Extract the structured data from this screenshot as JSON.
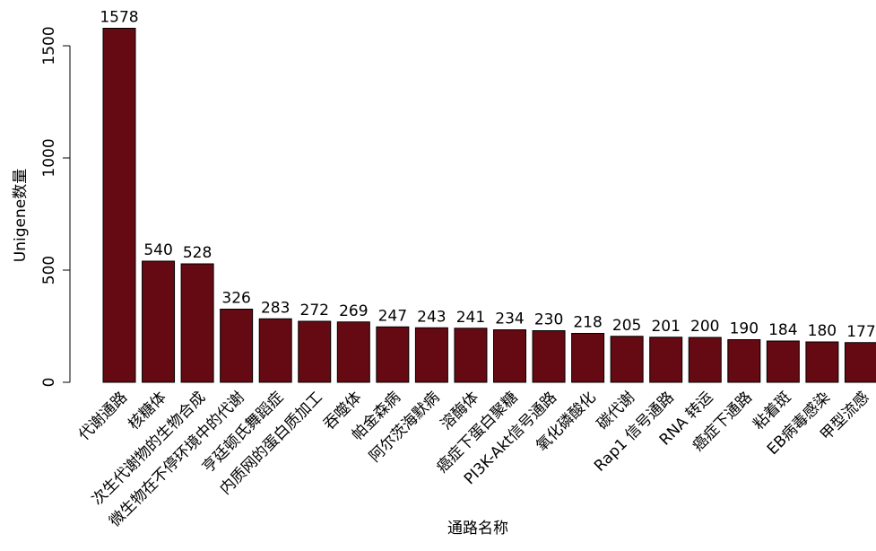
{
  "chart_data": {
    "type": "bar",
    "xlabel": "通路名称",
    "ylabel": "Unigene数量",
    "ylim": [
      0,
      1600
    ],
    "yticks": [
      0,
      500,
      1000,
      1500
    ],
    "grid": false,
    "bar_color": "#650A12",
    "categories": [
      "代谢通路",
      "核糖体",
      "次生代谢物的生物合成",
      "微生物在不停环境中的代谢",
      "亨廷顿氏舞蹈症",
      "内质网的蛋白质加工",
      "吞噬体",
      "帕金森病",
      "阿尔茨海默病",
      "溶酶体",
      "癌症下蛋白聚糖",
      "PI3K-Akt信号通路",
      "氧化磷酸化",
      "碳代谢",
      "Rap1 信号通路",
      "RNA 转运",
      "癌症下通路",
      "粘着斑",
      "EB病毒感染",
      "甲型流感"
    ],
    "values": [
      1578,
      540,
      528,
      326,
      283,
      272,
      269,
      247,
      243,
      241,
      234,
      230,
      218,
      205,
      201,
      200,
      190,
      184,
      180,
      177
    ]
  }
}
